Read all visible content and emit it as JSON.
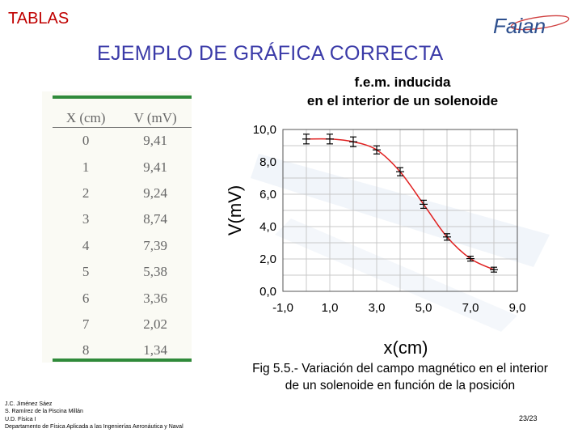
{
  "header": {
    "label": "TABLAS",
    "logo_text": "Faian"
  },
  "subtitle": "EJEMPLO DE GRÁFICA CORRECTA",
  "table": {
    "headers": [
      "X (cm)",
      "V (mV)"
    ],
    "rows": [
      [
        "0",
        "9,41"
      ],
      [
        "1",
        "9,41"
      ],
      [
        "2",
        "9,24"
      ],
      [
        "3",
        "8,74"
      ],
      [
        "4",
        "7,39"
      ],
      [
        "5",
        "5,38"
      ],
      [
        "6",
        "3,36"
      ],
      [
        "7",
        "2,02"
      ],
      [
        "8",
        "1,34"
      ]
    ]
  },
  "chart_data": {
    "type": "scatter",
    "title": "f.e.m. inducida\nen el interior de un solenoide",
    "title_lines": [
      "f.e.m. inducida",
      "en el interior de un solenoide"
    ],
    "xlabel": "x(cm)",
    "ylabel": "V(mV)",
    "xlim": [
      -1.0,
      9.0
    ],
    "ylim": [
      0.0,
      10.0
    ],
    "xticks": [
      -1.0,
      1.0,
      3.0,
      5.0,
      7.0,
      9.0
    ],
    "yticks": [
      0.0,
      2.0,
      4.0,
      6.0,
      8.0,
      10.0
    ],
    "xtick_labels": [
      "-1,0",
      "1,0",
      "3,0",
      "5,0",
      "7,0",
      "9,0"
    ],
    "ytick_labels": [
      "0,0",
      "2,0",
      "4,0",
      "6,0",
      "8,0",
      "10,0"
    ],
    "grid": true,
    "x": [
      0,
      1,
      2,
      3,
      4,
      5,
      6,
      7,
      8
    ],
    "y": [
      9.41,
      9.41,
      9.24,
      8.74,
      7.39,
      5.38,
      3.36,
      2.02,
      1.34
    ],
    "y_error": [
      0.3,
      0.3,
      0.3,
      0.25,
      0.25,
      0.25,
      0.2,
      0.15,
      0.15
    ],
    "fit_curve": true,
    "colors": {
      "points": "#000000",
      "fit": "#e02020",
      "grid": "#c8c8c8"
    }
  },
  "caption": "Fig 5.5.- Variación del campo magnético en el interior\nde un solenoide en función de la posición",
  "caption_lines": [
    "Fig 5.5.- Variación del campo magnético en el interior",
    "de un solenoide en función de la posición"
  ],
  "credits": [
    "J.C. Jiménez Sáez",
    "S. Ramírez de la Piscina Millán",
    "U.D. Física I",
    "Departamento de Física Aplicada a las Ingenierías Aeronáutica y Naval"
  ],
  "page": "23/23"
}
